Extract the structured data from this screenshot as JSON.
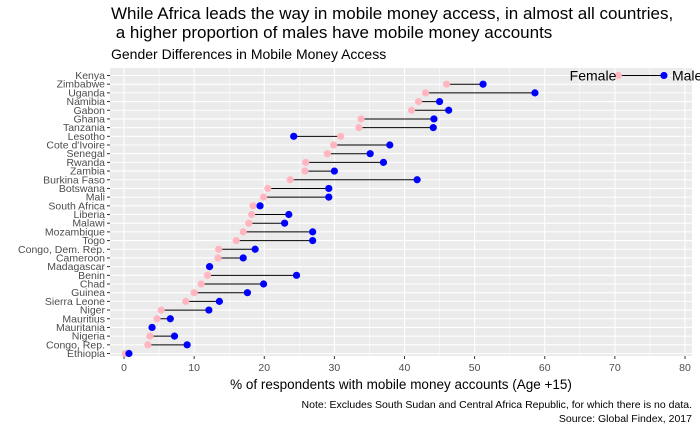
{
  "chart_data": {
    "type": "dumbbell",
    "title": "While Africa leads the way in mobile money access, in almost all countries,\n a higher proportion of males have mobile money accounts",
    "subtitle": "Gender Differences in Mobile Money Access",
    "xlabel": "% of respondents with mobile money accounts (Age +15)",
    "xlim": [
      -2,
      81
    ],
    "x_ticks": [
      0,
      10,
      20,
      30,
      40,
      50,
      60,
      70,
      80
    ],
    "grid": true,
    "legend": {
      "placement": "top-right",
      "female_label": "Female",
      "male_label": "Male"
    },
    "colors": {
      "female": "#FFB6C1",
      "male": "#0000FF",
      "segment": "#000000",
      "panel": "#EBEBEB",
      "grid": "#FFFFFF"
    },
    "series_names": [
      "Female",
      "Male"
    ],
    "categories": [
      "Kenya",
      "Zimbabwe",
      "Uganda",
      "Namibia",
      "Gabon",
      "Ghana",
      "Tanzania",
      "Lesotho",
      "Cote d'Ivoire",
      "Senegal",
      "Rwanda",
      "Zambia",
      "Burkina Faso",
      "Botswana",
      "Mali",
      "South Africa",
      "Liberia",
      "Malawi",
      "Mozambique",
      "Togo",
      "Congo, Dem. Rep.",
      "Cameroon",
      "Madagascar",
      "Benin",
      "Chad",
      "Guinea",
      "Sierra Leone",
      "Niger",
      "Mauritius",
      "Mauritania",
      "Nigeria",
      "Congo, Rep.",
      "Ethiopia"
    ],
    "female": [
      70.5,
      46.0,
      43.0,
      42.0,
      41.0,
      33.8,
      33.5,
      30.9,
      29.9,
      29.0,
      25.9,
      25.8,
      23.7,
      20.5,
      19.9,
      18.4,
      18.2,
      17.8,
      17.0,
      16.0,
      13.5,
      13.4,
      12.2,
      11.9,
      11.0,
      10.0,
      8.8,
      5.3,
      4.7,
      4.0,
      3.7,
      3.4,
      0.2
    ],
    "male": [
      77.0,
      51.2,
      58.6,
      45.0,
      46.3,
      44.2,
      44.1,
      24.2,
      37.9,
      35.1,
      37.0,
      30.0,
      41.8,
      29.2,
      29.2,
      19.4,
      23.5,
      22.9,
      26.9,
      26.9,
      18.7,
      17.0,
      12.2,
      24.6,
      19.9,
      17.6,
      13.6,
      12.1,
      6.6,
      4.0,
      7.2,
      9.0,
      0.7
    ]
  },
  "footnote": {
    "line1": "Note: Excludes South Sudan and Central Africa Republic, for which there is no data.",
    "line2": "Source: Global Findex, 2017"
  }
}
